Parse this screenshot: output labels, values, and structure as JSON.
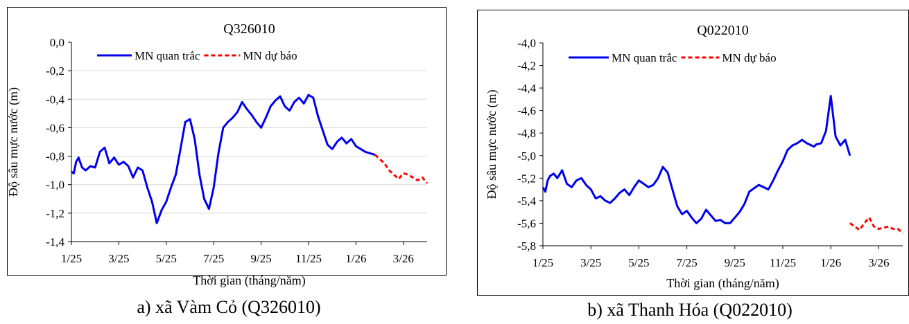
{
  "captions": {
    "a": "a) xã Vàm Cỏ (Q326010)",
    "b": "b) xã Thanh Hóa (Q022010)"
  },
  "colors": {
    "observed": "#0000ee",
    "forecast": "#ff0000"
  },
  "chart_data": [
    {
      "type": "line",
      "title": "Q326010",
      "xlabel": "Thời gian (tháng/năm)",
      "ylabel": "Độ sâu mực nước (m)",
      "ylim": [
        -1.4,
        0.0
      ],
      "xlim": [
        0,
        15
      ],
      "x_unit": "months from 1/25",
      "xticks": [
        0,
        2,
        4,
        6,
        8,
        10,
        12,
        14
      ],
      "xtick_labels": [
        "1/25",
        "3/25",
        "5/25",
        "7/25",
        "9/25",
        "11/25",
        "1/26",
        "3/26"
      ],
      "ytick_labels": [
        "0,0",
        "-0,2",
        "-0,4",
        "-0,6",
        "-0,8",
        "-1,0",
        "-1,2",
        "-1,4"
      ],
      "grid": "horizontal",
      "legend_position": "top-left",
      "series": [
        {
          "name": "MN quan trắc",
          "style": "solid",
          "x": [
            0,
            0.1,
            0.2,
            0.3,
            0.45,
            0.6,
            0.8,
            1.0,
            1.2,
            1.4,
            1.6,
            1.8,
            2.0,
            2.2,
            2.4,
            2.6,
            2.8,
            3.0,
            3.2,
            3.4,
            3.6,
            3.8,
            4.0,
            4.2,
            4.4,
            4.6,
            4.8,
            5.0,
            5.2,
            5.4,
            5.6,
            5.8,
            6.0,
            6.2,
            6.4,
            6.6,
            6.8,
            7.0,
            7.2,
            7.4,
            7.6,
            7.8,
            8.0,
            8.2,
            8.4,
            8.6,
            8.8,
            9.0,
            9.2,
            9.4,
            9.6,
            9.8,
            10.0,
            10.2,
            10.4,
            10.6,
            10.8,
            11.0,
            11.2,
            11.4,
            11.6,
            11.8,
            12.0,
            12.2,
            12.4,
            12.6,
            12.8
          ],
          "y": [
            -0.91,
            -0.92,
            -0.84,
            -0.81,
            -0.88,
            -0.9,
            -0.87,
            -0.88,
            -0.77,
            -0.74,
            -0.85,
            -0.81,
            -0.86,
            -0.84,
            -0.87,
            -0.95,
            -0.88,
            -0.9,
            -1.02,
            -1.12,
            -1.27,
            -1.18,
            -1.12,
            -1.02,
            -0.93,
            -0.75,
            -0.56,
            -0.54,
            -0.68,
            -0.93,
            -1.1,
            -1.17,
            -1.02,
            -0.78,
            -0.6,
            -0.56,
            -0.53,
            -0.49,
            -0.42,
            -0.47,
            -0.51,
            -0.56,
            -0.6,
            -0.53,
            -0.45,
            -0.41,
            -0.38,
            -0.45,
            -0.48,
            -0.42,
            -0.39,
            -0.43,
            -0.37,
            -0.39,
            -0.52,
            -0.62,
            -0.72,
            -0.75,
            -0.7,
            -0.67,
            -0.71,
            -0.68,
            -0.73,
            -0.75,
            -0.77,
            -0.78,
            -0.79
          ]
        },
        {
          "name": "MN dự báo",
          "style": "dashed",
          "x": [
            12.8,
            13.0,
            13.2,
            13.4,
            13.6,
            13.8,
            14.0,
            14.2,
            14.4,
            14.6,
            14.8,
            15.0
          ],
          "y": [
            -0.79,
            -0.82,
            -0.85,
            -0.9,
            -0.93,
            -0.96,
            -0.92,
            -0.93,
            -0.95,
            -0.97,
            -0.95,
            -0.99
          ]
        }
      ]
    },
    {
      "type": "line",
      "title": "Q022010",
      "xlabel": "Thời gian (tháng/năm)",
      "ylabel": "Độ sâu mực nước (m)",
      "ylim": [
        -5.8,
        -4.0
      ],
      "xlim": [
        0,
        15
      ],
      "x_unit": "months from 1/25",
      "xticks": [
        0,
        2,
        4,
        6,
        8,
        10,
        12,
        14
      ],
      "xtick_labels": [
        "1/25",
        "3/25",
        "5/25",
        "7/25",
        "9/25",
        "11/25",
        "1/26",
        "3/26"
      ],
      "ytick_labels": [
        "-4,0",
        "-4,2",
        "-4,4",
        "-4,6",
        "-4,8",
        "-5,0",
        "-5,2",
        "-5,4",
        "-5,6",
        "-5,8"
      ],
      "grid": "none",
      "legend_position": "top-left",
      "series": [
        {
          "name": "MN quan trắc",
          "style": "solid",
          "x": [
            0,
            0.1,
            0.2,
            0.3,
            0.45,
            0.6,
            0.8,
            1.0,
            1.2,
            1.4,
            1.6,
            1.8,
            2.0,
            2.2,
            2.4,
            2.6,
            2.8,
            3.0,
            3.2,
            3.4,
            3.6,
            3.8,
            4.0,
            4.2,
            4.4,
            4.6,
            4.8,
            5.0,
            5.2,
            5.4,
            5.6,
            5.8,
            6.0,
            6.2,
            6.4,
            6.6,
            6.8,
            7.0,
            7.2,
            7.4,
            7.6,
            7.8,
            8.0,
            8.2,
            8.4,
            8.6,
            8.8,
            9.0,
            9.2,
            9.4,
            9.6,
            9.8,
            10.0,
            10.2,
            10.4,
            10.6,
            10.8,
            11.0,
            11.2,
            11.3,
            11.4,
            11.6,
            11.8,
            12.0,
            12.2,
            12.4,
            12.6,
            12.8
          ],
          "y": [
            -5.28,
            -5.32,
            -5.22,
            -5.18,
            -5.16,
            -5.2,
            -5.13,
            -5.25,
            -5.28,
            -5.22,
            -5.2,
            -5.26,
            -5.3,
            -5.38,
            -5.36,
            -5.4,
            -5.42,
            -5.38,
            -5.33,
            -5.3,
            -5.35,
            -5.28,
            -5.22,
            -5.25,
            -5.28,
            -5.26,
            -5.2,
            -5.1,
            -5.15,
            -5.3,
            -5.45,
            -5.52,
            -5.49,
            -5.55,
            -5.6,
            -5.56,
            -5.48,
            -5.53,
            -5.58,
            -5.57,
            -5.6,
            -5.6,
            -5.55,
            -5.5,
            -5.43,
            -5.32,
            -5.29,
            -5.26,
            -5.28,
            -5.3,
            -5.22,
            -5.13,
            -5.05,
            -4.95,
            -4.91,
            -4.89,
            -4.86,
            -4.89,
            -4.91,
            -4.92,
            -4.9,
            -4.89,
            -4.78,
            -4.47,
            -4.83,
            -4.91,
            -4.86,
            -5.0
          ]
        },
        {
          "name": "MN dự báo",
          "style": "dashed",
          "x": [
            12.8,
            13.0,
            13.2,
            13.4,
            13.6,
            13.8,
            14.0,
            14.2,
            14.4,
            14.6,
            14.8,
            15.0
          ],
          "y": [
            -5.6,
            -5.63,
            -5.66,
            -5.6,
            -5.55,
            -5.63,
            -5.65,
            -5.64,
            -5.63,
            -5.65,
            -5.65,
            -5.69
          ]
        }
      ]
    }
  ]
}
